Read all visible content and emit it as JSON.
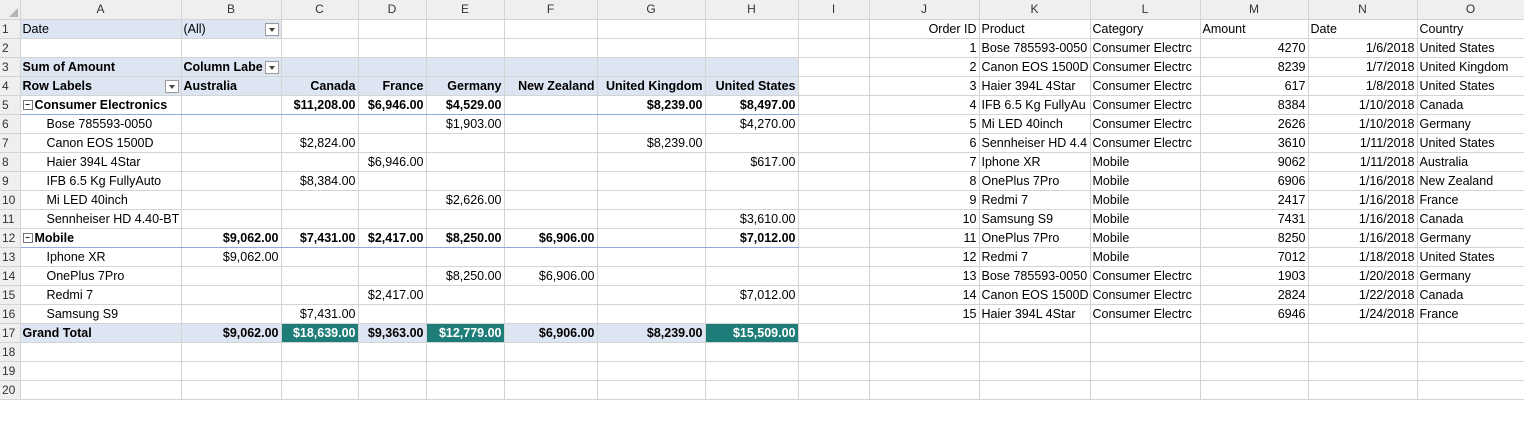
{
  "columns": [
    "A",
    "B",
    "C",
    "D",
    "E",
    "F",
    "G",
    "H",
    "I",
    "J",
    "K",
    "L",
    "M",
    "N",
    "O"
  ],
  "row_numbers": [
    "1",
    "2",
    "3",
    "4",
    "5",
    "6",
    "7",
    "8",
    "9",
    "10",
    "11",
    "12",
    "13",
    "14",
    "15",
    "16",
    "17",
    "18",
    "19",
    "20"
  ],
  "filter": {
    "label": "Date",
    "value": "(All)"
  },
  "pivot": {
    "values_label": "Sum of Amount",
    "column_labels": "Column Labe",
    "row_labels": "Row Labels",
    "countries": [
      "Australia",
      "Canada",
      "France",
      "Germany",
      "New Zealand",
      "United Kingdom",
      "United States"
    ],
    "rows": [
      {
        "label": "Consumer Electronics",
        "level": 0,
        "values": [
          "",
          "$11,208.00",
          "$6,946.00",
          "$4,529.00",
          "",
          "$8,239.00",
          "$8,497.00"
        ]
      },
      {
        "label": "Bose 785593-0050",
        "level": 1,
        "values": [
          "",
          "",
          "",
          "$1,903.00",
          "",
          "",
          "$4,270.00"
        ]
      },
      {
        "label": "Canon EOS 1500D",
        "level": 1,
        "values": [
          "",
          "$2,824.00",
          "",
          "",
          "",
          "$8,239.00",
          ""
        ]
      },
      {
        "label": "Haier 394L 4Star",
        "level": 1,
        "values": [
          "",
          "",
          "$6,946.00",
          "",
          "",
          "",
          "$617.00"
        ]
      },
      {
        "label": "IFB 6.5 Kg FullyAuto",
        "level": 1,
        "values": [
          "",
          "$8,384.00",
          "",
          "",
          "",
          "",
          ""
        ]
      },
      {
        "label": "Mi LED 40inch",
        "level": 1,
        "values": [
          "",
          "",
          "",
          "$2,626.00",
          "",
          "",
          ""
        ]
      },
      {
        "label": "Sennheiser HD 4.40-BT",
        "level": 1,
        "values": [
          "",
          "",
          "",
          "",
          "",
          "",
          "$3,610.00"
        ]
      },
      {
        "label": "Mobile",
        "level": 0,
        "values": [
          "$9,062.00",
          "$7,431.00",
          "$2,417.00",
          "$8,250.00",
          "$6,906.00",
          "",
          "$7,012.00"
        ]
      },
      {
        "label": "Iphone XR",
        "level": 1,
        "values": [
          "$9,062.00",
          "",
          "",
          "",
          "",
          "",
          ""
        ]
      },
      {
        "label": "OnePlus 7Pro",
        "level": 1,
        "values": [
          "",
          "",
          "",
          "$8,250.00",
          "$6,906.00",
          "",
          ""
        ]
      },
      {
        "label": "Redmi 7",
        "level": 1,
        "values": [
          "",
          "",
          "$2,417.00",
          "",
          "",
          "",
          "$7,012.00"
        ]
      },
      {
        "label": "Samsung S9",
        "level": 1,
        "values": [
          "",
          "$7,431.00",
          "",
          "",
          "",
          "",
          ""
        ]
      }
    ],
    "grand_total": {
      "label": "Grand Total",
      "values": [
        "$9,062.00",
        "$18,639.00",
        "$9,363.00",
        "$12,779.00",
        "$6,906.00",
        "$8,239.00",
        "$15,509.00"
      ]
    }
  },
  "source": {
    "headers": [
      "Order ID",
      "Product",
      "Category",
      "Amount",
      "Date",
      "Country"
    ],
    "rows": [
      [
        "1",
        "Bose 785593-0050",
        "Consumer Electrc",
        "4270",
        "1/6/2018",
        "United States"
      ],
      [
        "2",
        "Canon EOS 1500D",
        "Consumer Electrc",
        "8239",
        "1/7/2018",
        "United Kingdom"
      ],
      [
        "3",
        "Haier 394L 4Star",
        "Consumer Electrc",
        "617",
        "1/8/2018",
        "United States"
      ],
      [
        "4",
        "IFB 6.5 Kg FullyAu",
        "Consumer Electrc",
        "8384",
        "1/10/2018",
        "Canada"
      ],
      [
        "5",
        "Mi LED 40inch",
        "Consumer Electrc",
        "2626",
        "1/10/2018",
        "Germany"
      ],
      [
        "6",
        "Sennheiser HD 4.4",
        "Consumer Electrc",
        "3610",
        "1/11/2018",
        "United States"
      ],
      [
        "7",
        "Iphone XR",
        "Mobile",
        "9062",
        "1/11/2018",
        "Australia"
      ],
      [
        "8",
        "OnePlus 7Pro",
        "Mobile",
        "6906",
        "1/16/2018",
        "New Zealand"
      ],
      [
        "9",
        "Redmi 7",
        "Mobile",
        "2417",
        "1/16/2018",
        "France"
      ],
      [
        "10",
        "Samsung S9",
        "Mobile",
        "7431",
        "1/16/2018",
        "Canada"
      ],
      [
        "11",
        "OnePlus 7Pro",
        "Mobile",
        "8250",
        "1/16/2018",
        "Germany"
      ],
      [
        "12",
        "Redmi 7",
        "Mobile",
        "7012",
        "1/18/2018",
        "United States"
      ],
      [
        "13",
        "Bose 785593-0050",
        "Consumer Electrc",
        "1903",
        "1/20/2018",
        "Germany"
      ],
      [
        "14",
        "Canon EOS 1500D",
        "Consumer Electrc",
        "2824",
        "1/22/2018",
        "Canada"
      ],
      [
        "15",
        "Haier 394L 4Star",
        "Consumer Electrc",
        "6946",
        "1/24/2018",
        "France"
      ]
    ]
  },
  "colors": {
    "pivot_header": "#dde4f2",
    "highlight": "#1f7d79",
    "grid": "#d4d4d4"
  }
}
